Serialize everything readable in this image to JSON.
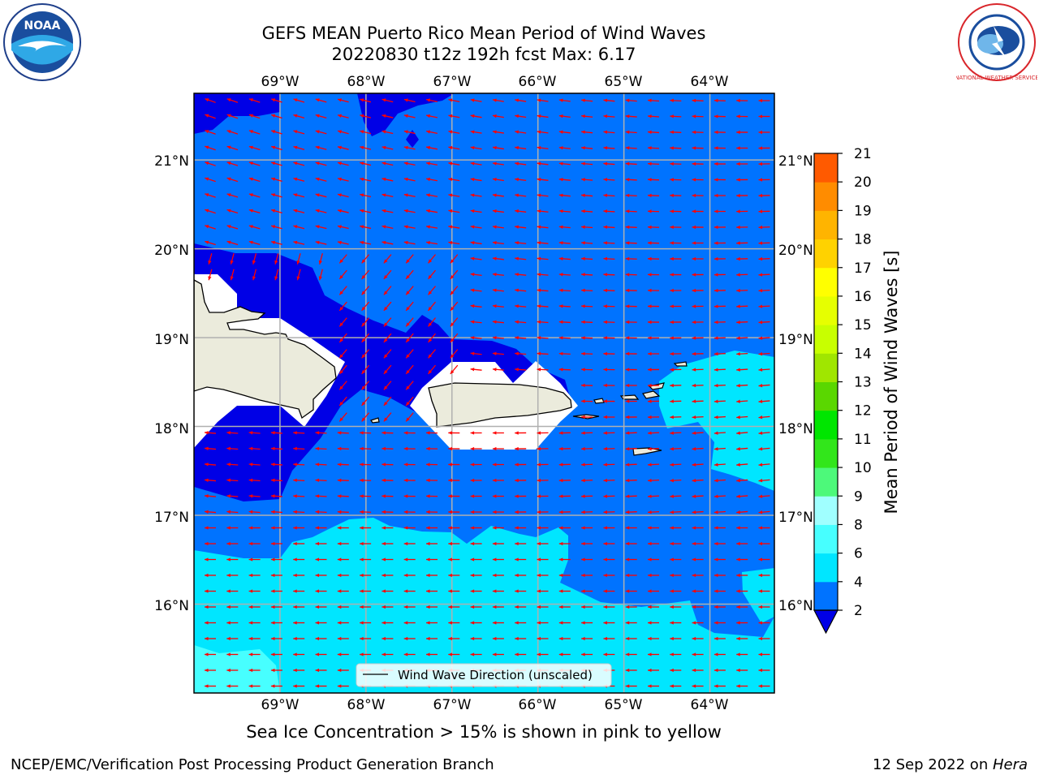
{
  "title": {
    "line1": "GEFS MEAN Puerto Rico Mean Period of Wind Waves",
    "line2": "20220830 t12z 192h fcst   Max: 6.17"
  },
  "map": {
    "lon_labels": [
      "69°W",
      "68°W",
      "67°W",
      "66°W",
      "65°W",
      "64°W"
    ],
    "lat_labels": [
      "21°N",
      "20°N",
      "19°N",
      "18°N",
      "17°N",
      "16°N"
    ],
    "lon_values": [
      -69,
      -68,
      -67,
      -66,
      -65,
      -64
    ],
    "lat_values": [
      21,
      20,
      19,
      18,
      17,
      16
    ],
    "extent": {
      "lon": [
        -70,
        -63.25
      ],
      "lat": [
        15,
        21.75
      ]
    },
    "legend_label": "Wind Wave Direction (unscaled)",
    "arrow_color": "#ff0000",
    "land_color": "#ebebdc",
    "gridline_color": "#b0b0b0"
  },
  "colorbar": {
    "label": "Mean Period of Wind Waves [s]",
    "ticks": [
      "2",
      "4",
      "6",
      "8",
      "9",
      "10",
      "11",
      "12",
      "13",
      "14",
      "15",
      "16",
      "17",
      "18",
      "19",
      "20",
      "21"
    ],
    "level_colors": [
      "#0073ff",
      "#00e6ff",
      "#47ffff",
      "#a0ffff",
      "#4df97a",
      "#32e61b",
      "#00e600",
      "#5ad700",
      "#a0e600",
      "#c8ff00",
      "#e6ff00",
      "#ffff00",
      "#ffd200",
      "#ffb400",
      "#ff8c00",
      "#ff5a00",
      "#ff2300",
      "#ff0000"
    ],
    "under_color": "#0000e6"
  },
  "subcaption": "Sea Ice Concentration > 15% is shown in pink to yellow",
  "footer": {
    "left": "NCEP/EMC/Verification Post Processing Product Generation Branch",
    "right_prefix": "12 Sep 2022 on ",
    "right_machine": "Hera"
  },
  "logos": {
    "left": {
      "icon": "noaa-logo",
      "text": "NOAA"
    },
    "right": {
      "icon": "nws-logo",
      "text": "NATIONAL WEATHER SERVICE"
    }
  }
}
